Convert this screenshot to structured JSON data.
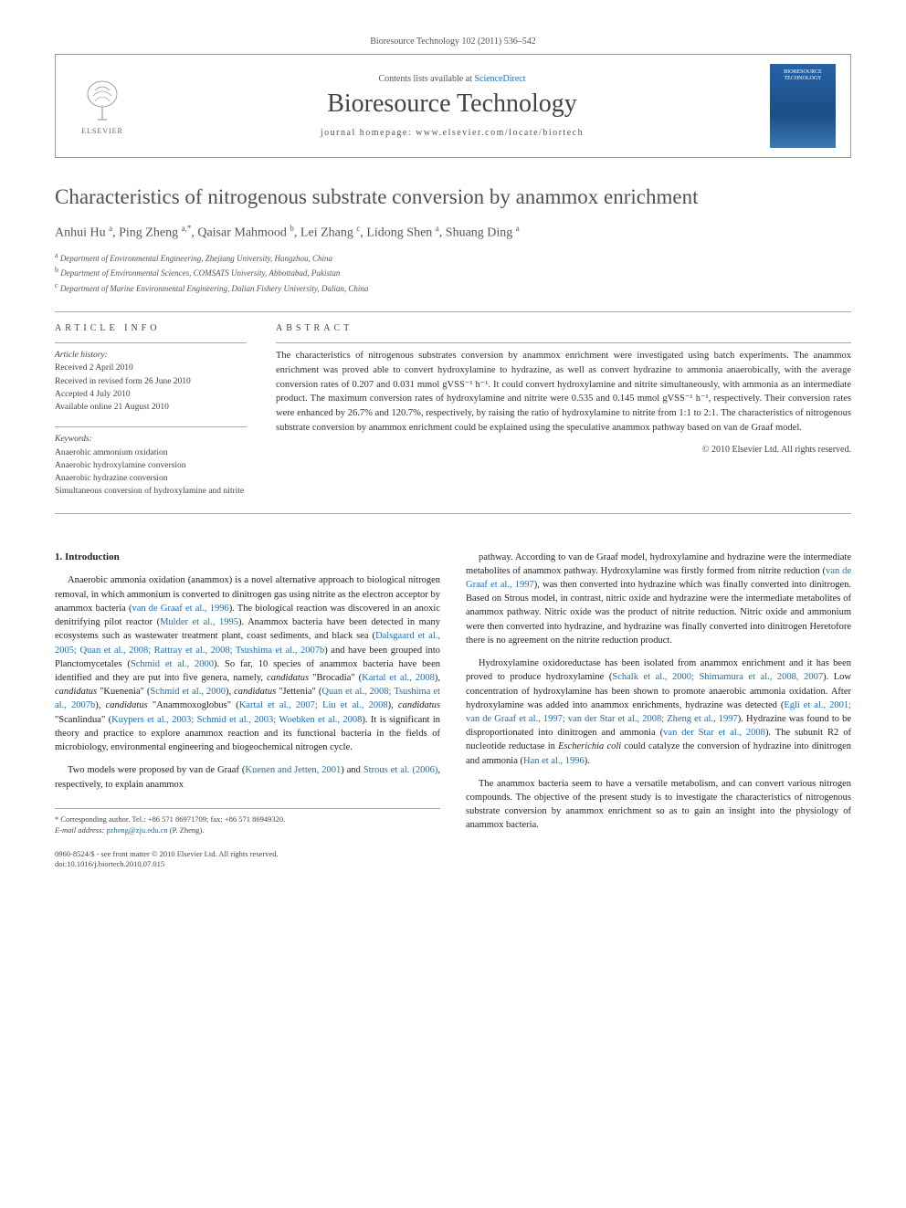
{
  "journal_ref": "Bioresource Technology 102 (2011) 536–542",
  "header": {
    "contents_prefix": "Contents lists available at ",
    "contents_link": "ScienceDirect",
    "journal_name": "Bioresource Technology",
    "homepage_prefix": "journal homepage: ",
    "homepage_url": "www.elsevier.com/locate/biortech",
    "publisher": "ELSEVIER",
    "cover_label": "BIORESOURCE TECHNOLOGY"
  },
  "title": "Characteristics of nitrogenous substrate conversion by anammox enrichment",
  "authors_html": "Anhui Hu <sup>a</sup>, Ping Zheng <sup>a,*</sup>, Qaisar Mahmood <sup>b</sup>, Lei Zhang <sup>c</sup>, Lidong Shen <sup>a</sup>, Shuang Ding <sup>a</sup>",
  "affiliations": [
    {
      "sup": "a",
      "text": "Department of Environmental Engineering, Zhejiang University, Hangzhou, China"
    },
    {
      "sup": "b",
      "text": "Department of Environmental Sciences, COMSATS University, Abbottabad, Pakistan"
    },
    {
      "sup": "c",
      "text": "Department of Marine Environmental Engineering, Dalian Fishery University, Dalian, China"
    }
  ],
  "article_info": {
    "heading": "ARTICLE INFO",
    "history_label": "Article history:",
    "received": "Received 2 April 2010",
    "revised": "Received in revised form 26 June 2010",
    "accepted": "Accepted 4 July 2010",
    "online": "Available online 21 August 2010",
    "keywords_label": "Keywords:",
    "keywords": [
      "Anaerobic ammonium oxidation",
      "Anaerobic hydroxylamine conversion",
      "Anaerobic hydrazine conversion",
      "Simultaneous conversion of hydroxylamine and nitrite"
    ]
  },
  "abstract": {
    "heading": "ABSTRACT",
    "text": "The characteristics of nitrogenous substrates conversion by anammox enrichment were investigated using batch experiments. The anammox enrichment was proved able to convert hydroxylamine to hydrazine, as well as convert hydrazine to ammonia anaerobically, with the average conversion rates of 0.207 and 0.031 mmol gVSS⁻¹ h⁻¹. It could convert hydroxylamine and nitrite simultaneously, with ammonia as an intermediate product. The maximum conversion rates of hydroxylamine and nitrite were 0.535 and 0.145 mmol gVSS⁻¹ h⁻¹, respectively. Their conversion rates were enhanced by 26.7% and 120.7%, respectively, by raising the ratio of hydroxylamine to nitrite from 1:1 to 2:1. The characteristics of nitrogenous substrate conversion by anammox enrichment could be explained using the speculative anammox pathway based on van de Graaf model.",
    "copyright": "© 2010 Elsevier Ltd. All rights reserved."
  },
  "body": {
    "intro_heading": "1. Introduction",
    "left_paragraphs": [
      "Anaerobic ammonia oxidation (anammox) is a novel alternative approach to biological nitrogen removal, in which ammonium is converted to dinitrogen gas using nitrite as the electron acceptor by anammox bacteria (<span class='ref-link'>van de Graaf et al., 1996</span>). The biological reaction was discovered in an anoxic denitrifying pilot reactor (<span class='ref-link'>Mulder et al., 1995</span>). Anammox bacteria have been detected in many ecosystems such as wastewater treatment plant, coast sediments, and black sea (<span class='ref-link'>Dalsgaard et al., 2005; Quan et al., 2008; Rattray et al., 2008; Tsushima et al., 2007b</span>) and have been grouped into Planctomycetales (<span class='ref-link'>Schmid et al., 2000</span>). So far, 10 species of anammox bacteria have been identified and they are put into five genera, namely, <span class='ital'>candidatus</span> \"Brocadia\" (<span class='ref-link'>Kartal et al., 2008</span>), <span class='ital'>candidatus</span> \"Kuenenia\" (<span class='ref-link'>Schmid et al., 2000</span>), <span class='ital'>candidatus</span> \"Jettenia\" (<span class='ref-link'>Quan et al., 2008; Tsushima et al., 2007b</span>), <span class='ital'>candidatus</span> \"Anammoxoglobus\" (<span class='ref-link'>Kartal et al., 2007; Liu et al., 2008</span>), <span class='ital'>candidatus</span> \"Scanlindua\" (<span class='ref-link'>Kuypers et al., 2003; Schmid et al., 2003; Woebken et al., 2008</span>). It is significant in theory and practice to explore anammox reaction and its functional bacteria in the fields of microbiology, environmental engineering and biogeochemical nitrogen cycle.",
      "Two models were proposed by van de Graaf (<span class='ref-link'>Kuenen and Jetten, 2001</span>) and <span class='ref-link'>Strous et al. (2006)</span>, respectively, to explain anammox"
    ],
    "right_paragraphs": [
      "pathway. According to van de Graaf model, hydroxylamine and hydrazine were the intermediate metabolites of anammox pathway. Hydroxylamine was firstly formed from nitrite reduction (<span class='ref-link'>van de Graaf et al., 1997</span>), was then converted into hydrazine which was finally converted into dinitrogen. Based on Strous model, in contrast, nitric oxide and hydrazine were the intermediate metabolites of anammox pathway. Nitric oxide was the product of nitrite reduction. Nitric oxide and ammonium were then converted into hydrazine, and hydrazine was finally converted into dinitrogen Heretofore there is no agreement on the nitrite reduction product.",
      "Hydroxylamine oxidoreductase has been isolated from anammox enrichment and it has been proved to produce hydroxylamine (<span class='ref-link'>Schalk et al., 2000; Shimamura et al., 2008, 2007</span>). Low concentration of hydroxylamine has been shown to promote anaerobic ammonia oxidation. After hydroxylamine was added into anammox enrichments, hydrazine was detected (<span class='ref-link'>Egli et al., 2001; van de Graaf et al., 1997; van der Star et al., 2008; Zheng et al., 1997</span>). Hydrazine was found to be disproportionated into dinitrogen and ammonia (<span class='ref-link'>van der Star et al., 2008</span>). The subunit R2 of nucleotide reductase in <span class='ital'>Escherichia coli</span> could catalyze the conversion of hydrazine into dinitrogen and ammonia (<span class='ref-link'>Han et al., 1996</span>).",
      "The anammox bacteria seem to have a versatile metabolism, and can convert various nitrogen compounds. The objective of the present study is to investigate the characteristics of nitrogenous substrate conversion by anammox enrichment so as to gain an insight into the physiology of anammox bacteria."
    ]
  },
  "footer": {
    "corresponding": "* Corresponding author. Tel.: +86 571 86971709; fax: +86 571 86949320.",
    "email_label": "E-mail address:",
    "email": "pzheng@zju.edu.cn",
    "email_name": "(P. Zheng).",
    "issn_line": "0960-8524/$ - see front matter © 2010 Elsevier Ltd. All rights reserved.",
    "doi": "doi:10.1016/j.biortech.2010.07.015"
  },
  "colors": {
    "link": "#1a6db8",
    "text": "#333333",
    "heading": "#505050",
    "border": "#999999",
    "cover_bg": "#2563a8"
  }
}
